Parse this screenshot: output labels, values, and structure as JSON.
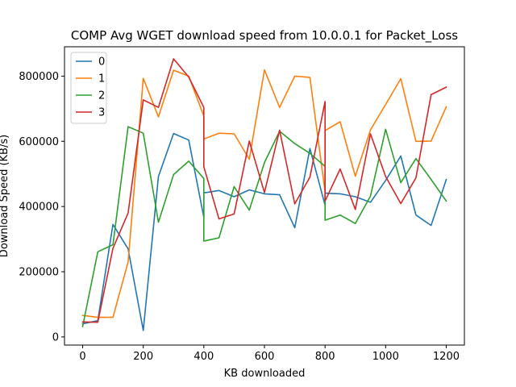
{
  "chart_data": {
    "type": "line",
    "title": "COMP Avg WGET download speed from 10.0.0.1 for Packet_Loss",
    "xlabel": "KB downloaded",
    "ylabel": "Download Speed (KB/s)",
    "xlim": [
      -60,
      1260
    ],
    "ylim": [
      -25000,
      890000
    ],
    "xticks": [
      0,
      200,
      400,
      600,
      800,
      1000,
      1200
    ],
    "yticks": [
      0,
      200000,
      400000,
      600000,
      800000
    ],
    "grid": false,
    "legend_position": "top-left",
    "series": [
      {
        "name": "0",
        "color": "#1f77b4",
        "points": [
          [
            0,
            40000
          ],
          [
            50,
            50000
          ],
          [
            100,
            345000
          ],
          [
            150,
            270000
          ],
          [
            200,
            20000
          ],
          [
            250,
            492000
          ],
          [
            300,
            624000
          ],
          [
            350,
            604000
          ],
          [
            400,
            367000
          ],
          [
            400,
            442000
          ],
          [
            450,
            449000
          ],
          [
            500,
            430000
          ],
          [
            550,
            451000
          ],
          [
            600,
            439000
          ],
          [
            650,
            436000
          ],
          [
            700,
            335000
          ],
          [
            750,
            578000
          ],
          [
            800,
            404000
          ],
          [
            800,
            441000
          ],
          [
            850,
            439000
          ],
          [
            900,
            430000
          ],
          [
            950,
            413000
          ],
          [
            1000,
            480000
          ],
          [
            1050,
            555000
          ],
          [
            1100,
            374000
          ],
          [
            1150,
            342000
          ],
          [
            1200,
            483000
          ]
        ]
      },
      {
        "name": "1",
        "color": "#ff7f0e",
        "points": [
          [
            0,
            66000
          ],
          [
            50,
            60000
          ],
          [
            100,
            60000
          ],
          [
            150,
            230000
          ],
          [
            200,
            793000
          ],
          [
            250,
            675000
          ],
          [
            300,
            818000
          ],
          [
            350,
            800000
          ],
          [
            400,
            677000
          ],
          [
            400,
            607000
          ],
          [
            450,
            625000
          ],
          [
            500,
            623000
          ],
          [
            550,
            545000
          ],
          [
            600,
            819000
          ],
          [
            650,
            704000
          ],
          [
            700,
            800000
          ],
          [
            750,
            796000
          ],
          [
            800,
            445000
          ],
          [
            800,
            633000
          ],
          [
            850,
            660000
          ],
          [
            900,
            493000
          ],
          [
            950,
            635000
          ],
          [
            1000,
            713000
          ],
          [
            1050,
            792000
          ],
          [
            1100,
            600000
          ],
          [
            1150,
            601000
          ],
          [
            1200,
            706000
          ]
        ]
      },
      {
        "name": "2",
        "color": "#2ca02c",
        "points": [
          [
            0,
            32000
          ],
          [
            50,
            261000
          ],
          [
            100,
            283000
          ],
          [
            150,
            645000
          ],
          [
            200,
            625000
          ],
          [
            250,
            352000
          ],
          [
            300,
            498000
          ],
          [
            350,
            539000
          ],
          [
            400,
            486000
          ],
          [
            400,
            294000
          ],
          [
            450,
            304000
          ],
          [
            500,
            461000
          ],
          [
            550,
            389000
          ],
          [
            600,
            535000
          ],
          [
            650,
            631000
          ],
          [
            700,
            593000
          ],
          [
            750,
            563000
          ],
          [
            800,
            523000
          ],
          [
            800,
            358000
          ],
          [
            850,
            374000
          ],
          [
            900,
            348000
          ],
          [
            950,
            432000
          ],
          [
            1000,
            637000
          ],
          [
            1050,
            473000
          ],
          [
            1100,
            547000
          ],
          [
            1150,
            483000
          ],
          [
            1200,
            417000
          ]
        ]
      },
      {
        "name": "3",
        "color": "#d62728",
        "points": [
          [
            0,
            46000
          ],
          [
            50,
            45000
          ],
          [
            100,
            272000
          ],
          [
            150,
            380000
          ],
          [
            200,
            727000
          ],
          [
            250,
            704000
          ],
          [
            300,
            853000
          ],
          [
            350,
            797000
          ],
          [
            400,
            704000
          ],
          [
            400,
            522000
          ],
          [
            450,
            362000
          ],
          [
            500,
            377000
          ],
          [
            550,
            601000
          ],
          [
            600,
            443000
          ],
          [
            650,
            634000
          ],
          [
            700,
            408000
          ],
          [
            750,
            490000
          ],
          [
            800,
            722000
          ],
          [
            800,
            417000
          ],
          [
            850,
            515000
          ],
          [
            900,
            391000
          ],
          [
            950,
            623000
          ],
          [
            1000,
            492000
          ],
          [
            1050,
            409000
          ],
          [
            1100,
            488000
          ],
          [
            1150,
            743000
          ],
          [
            1200,
            766000
          ]
        ]
      }
    ]
  }
}
